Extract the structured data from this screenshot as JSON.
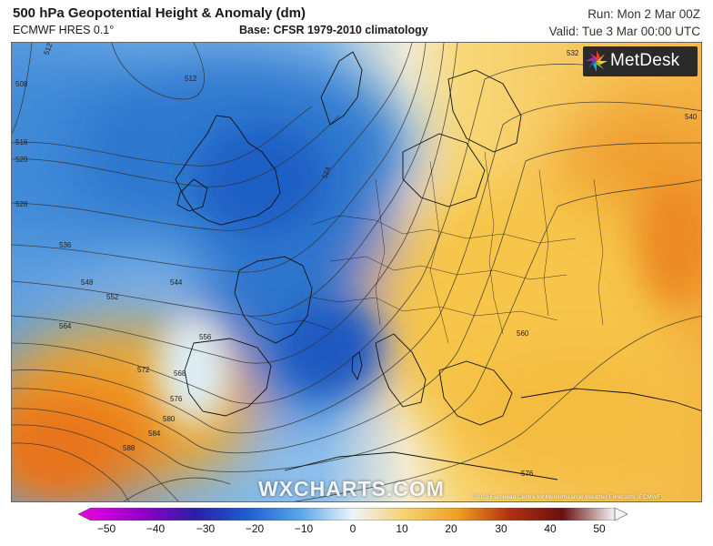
{
  "header": {
    "title": "500 hPa Geopotential Height & Anomaly (dm)",
    "model": "ECMWF HRES 0.1°",
    "base": "Base: CFSR 1979-2010 climatology",
    "run": "Run: Mon 2 Mar 00Z",
    "valid": "Valid: Tue 3 Mar 00:00 UTC"
  },
  "logo": {
    "text": "MetDesk"
  },
  "watermark": "WXCHARTS.COM",
  "copyright": "©2020 European Centre for Medium-range Weather Forecasts (ECMWF)",
  "colorbar": {
    "ticks": [
      "−50",
      "−40",
      "−30",
      "−20",
      "−10",
      "0",
      "10",
      "20",
      "30",
      "40",
      "50"
    ],
    "colors": [
      "#e000e0",
      "#9000c8",
      "#2a1ea8",
      "#1e5fd0",
      "#5aa6ea",
      "#eef4fa",
      "#f6d070",
      "#f0a020",
      "#b03010",
      "#6a1010",
      "#f4f4f4"
    ]
  },
  "contour_labels": [
    "512",
    "512",
    "508",
    "516",
    "520",
    "524",
    "528",
    "532",
    "536",
    "540",
    "544",
    "548",
    "552",
    "556",
    "560",
    "564",
    "568",
    "572",
    "576",
    "576",
    "580",
    "584",
    "588"
  ]
}
